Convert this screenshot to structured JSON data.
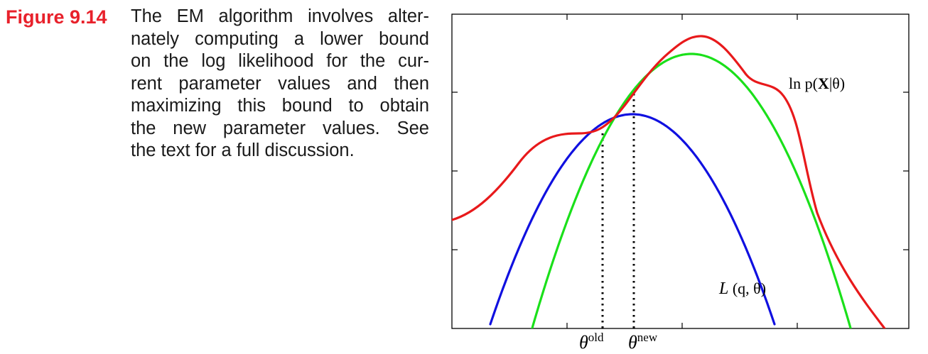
{
  "figure": {
    "label": "Figure 9.14",
    "caption_lines": [
      "The EM algorithm involves alter-",
      "nately computing a lower bound",
      "on the log likelihood for the cur-",
      "rent parameter values and then",
      "maximizing this bound to obtain",
      "the new parameter values.  See",
      "the text for a full discussion."
    ]
  },
  "chart_data": {
    "type": "line",
    "series": [
      {
        "name": "ln p(X|θ)",
        "color": "#e8191b"
      },
      {
        "name": "L(q,θ)",
        "color": "#1010e0",
        "anchor": "θold"
      },
      {
        "name": "L(q,θ)",
        "color": "#1ae01a",
        "anchor": "θnew"
      }
    ],
    "xticks": [
      "θold",
      "θnew"
    ],
    "series_labels": {
      "log_likelihood": {
        "base": "ln p(",
        "bold": "X",
        "rest": "|θ)"
      },
      "lower_bound": {
        "script": "L",
        "rest": " (q, θ)"
      }
    },
    "tick_labels": {
      "old": {
        "base": "θ",
        "sup": "old"
      },
      "new": {
        "base": "θ",
        "sup": "new"
      }
    },
    "grid": false,
    "colors": {
      "red": "#e8191b",
      "green": "#1ae01a",
      "blue": "#1010e0",
      "caption_label": "#e8212b"
    }
  }
}
